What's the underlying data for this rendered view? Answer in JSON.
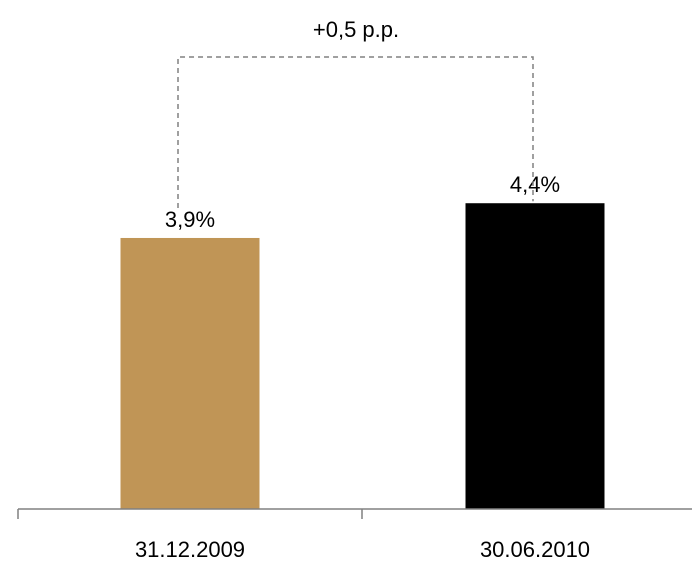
{
  "chart_data": {
    "type": "bar",
    "categories": [
      "31.12.2009",
      "30.06.2010"
    ],
    "values": [
      3.9,
      4.4
    ],
    "data_labels": [
      "3,9%",
      "4,4%"
    ],
    "colors": [
      "#C09556",
      "#000000"
    ],
    "ylim": [
      0,
      4.95
    ],
    "annotation": {
      "text": "+0,5 p.p.",
      "style": "dashed-bracket-between-bars",
      "color": "#808080"
    },
    "grid": false,
    "legend": "none",
    "title": "",
    "xlabel": "",
    "ylabel": ""
  }
}
